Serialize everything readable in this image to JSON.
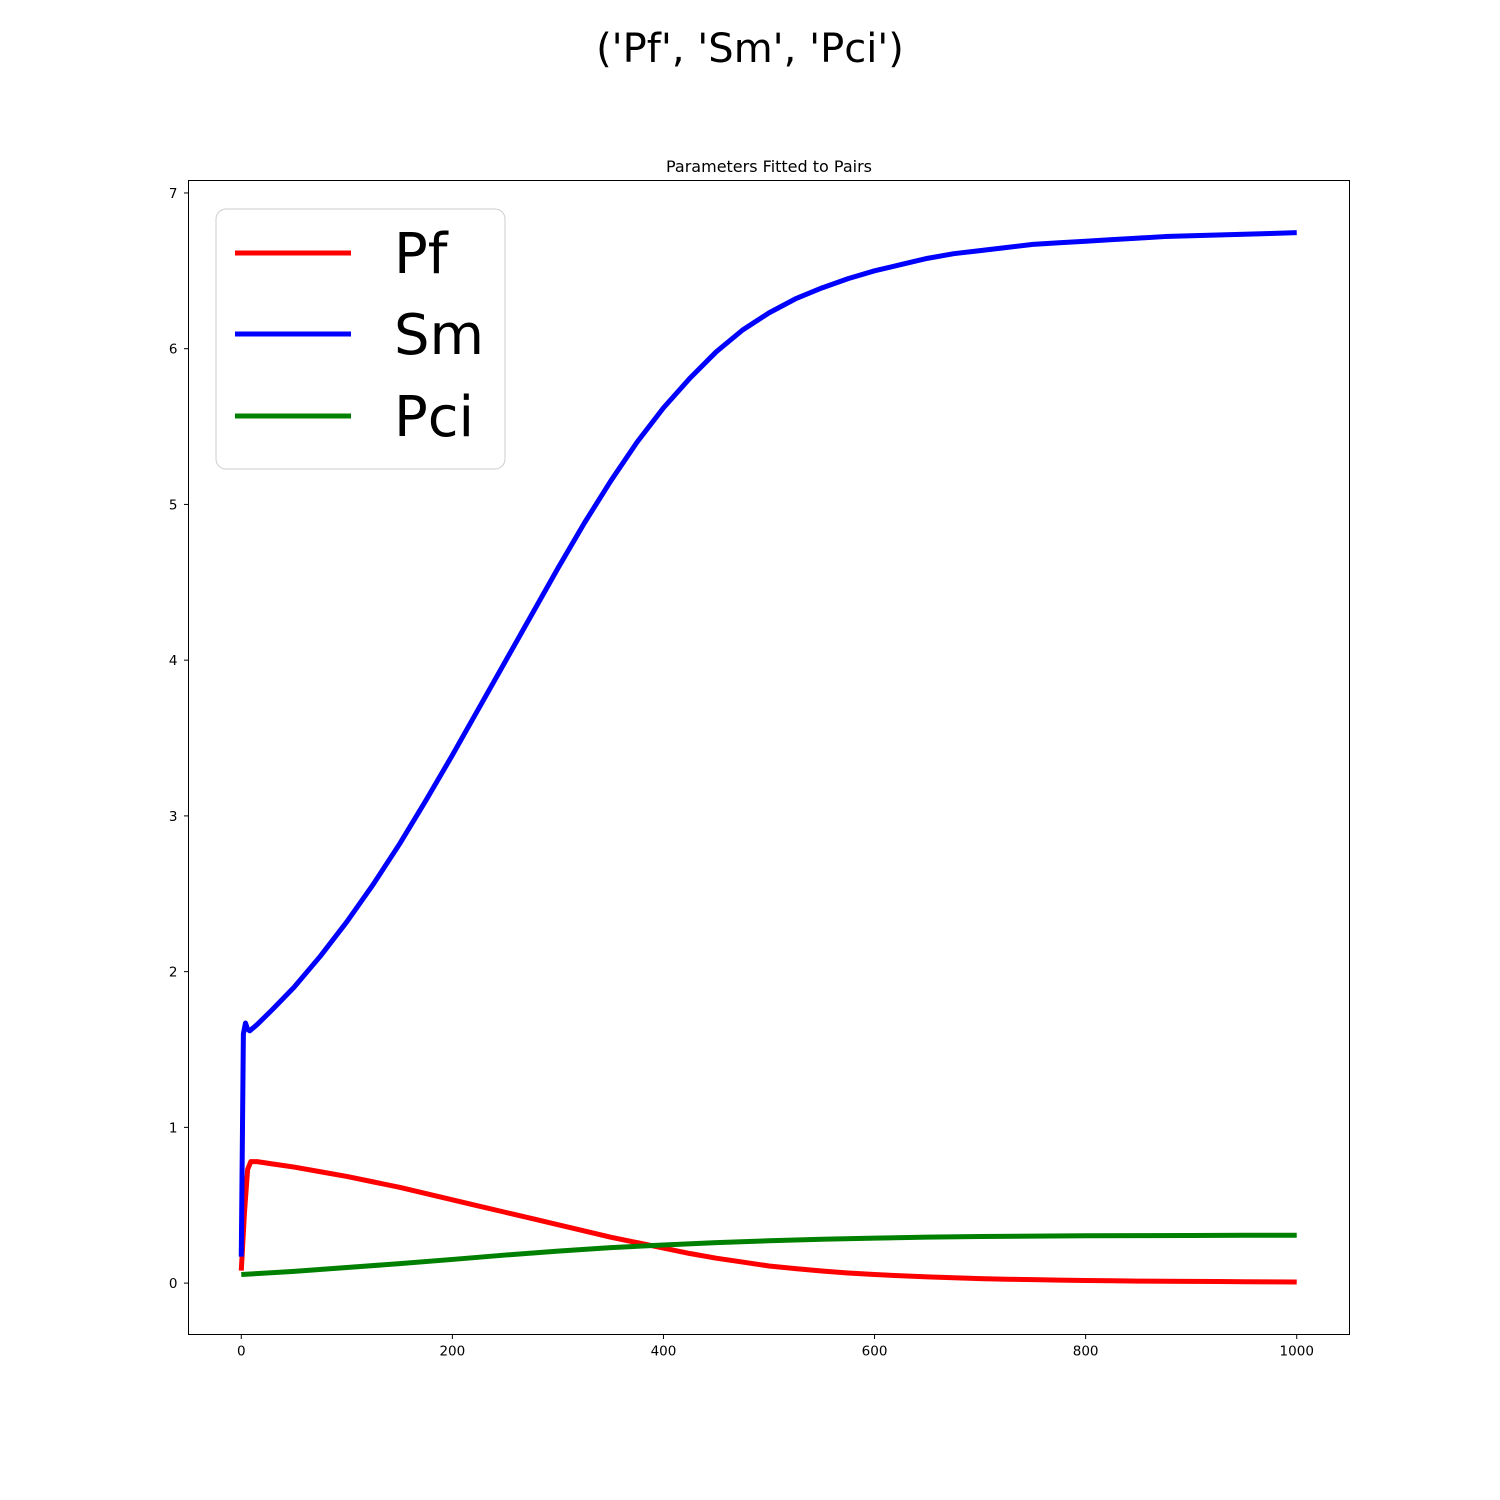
{
  "figure": {
    "suptitle": "('Pf', 'Sm', 'Pci')"
  },
  "chart_data": {
    "type": "line",
    "title": "Parameters Fitted to Pairs",
    "xlabel": "",
    "ylabel": "",
    "xlim": [
      -50,
      1050
    ],
    "ylim": [
      -0.33,
      7.08
    ],
    "xticks": [
      0,
      200,
      400,
      600,
      800,
      1000
    ],
    "yticks": [
      0,
      1,
      2,
      3,
      4,
      5,
      6,
      7
    ],
    "grid": false,
    "legend": "upper left",
    "series": [
      {
        "name": "Pf",
        "color": "#ff0000",
        "x": [
          0,
          3,
          6,
          9,
          15,
          30,
          50,
          75,
          100,
          125,
          150,
          175,
          200,
          225,
          250,
          275,
          300,
          325,
          350,
          375,
          400,
          425,
          450,
          475,
          500,
          525,
          550,
          575,
          600,
          625,
          650,
          675,
          700,
          725,
          750,
          775,
          800,
          825,
          850,
          875,
          900,
          925,
          950,
          975,
          1000
        ],
        "y": [
          0.08,
          0.45,
          0.73,
          0.78,
          0.78,
          0.765,
          0.745,
          0.715,
          0.685,
          0.65,
          0.615,
          0.575,
          0.535,
          0.495,
          0.455,
          0.415,
          0.375,
          0.335,
          0.295,
          0.26,
          0.225,
          0.19,
          0.16,
          0.135,
          0.11,
          0.093,
          0.078,
          0.065,
          0.055,
          0.047,
          0.04,
          0.034,
          0.029,
          0.025,
          0.022,
          0.019,
          0.017,
          0.015,
          0.013,
          0.012,
          0.011,
          0.01,
          0.009,
          0.008,
          0.007
        ]
      },
      {
        "name": "Sm",
        "color": "#0000ff",
        "x": [
          0,
          2,
          4,
          6,
          8,
          15,
          30,
          50,
          75,
          100,
          125,
          150,
          175,
          200,
          225,
          250,
          275,
          300,
          325,
          350,
          375,
          400,
          425,
          450,
          475,
          500,
          525,
          550,
          575,
          600,
          625,
          650,
          675,
          700,
          725,
          750,
          775,
          800,
          825,
          850,
          875,
          900,
          925,
          950,
          975,
          1000
        ],
        "y": [
          0.17,
          1.6,
          1.67,
          1.63,
          1.62,
          1.66,
          1.76,
          1.9,
          2.1,
          2.32,
          2.56,
          2.82,
          3.1,
          3.39,
          3.69,
          3.99,
          4.29,
          4.59,
          4.88,
          5.15,
          5.4,
          5.62,
          5.81,
          5.98,
          6.12,
          6.23,
          6.32,
          6.39,
          6.45,
          6.5,
          6.54,
          6.58,
          6.61,
          6.63,
          6.65,
          6.67,
          6.68,
          6.69,
          6.7,
          6.71,
          6.72,
          6.725,
          6.73,
          6.735,
          6.74,
          6.745
        ]
      },
      {
        "name": "Pci",
        "color": "#008000",
        "x": [
          0,
          50,
          100,
          150,
          200,
          250,
          300,
          350,
          400,
          450,
          500,
          550,
          600,
          650,
          700,
          750,
          800,
          850,
          900,
          950,
          1000
        ],
        "y": [
          0.055,
          0.075,
          0.1,
          0.125,
          0.152,
          0.18,
          0.205,
          0.228,
          0.245,
          0.26,
          0.272,
          0.282,
          0.289,
          0.295,
          0.299,
          0.302,
          0.304,
          0.305,
          0.306,
          0.307,
          0.307
        ]
      }
    ]
  }
}
